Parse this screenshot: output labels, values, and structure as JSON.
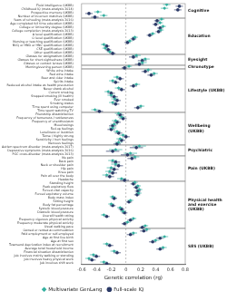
{
  "chart_data": {
    "type": "scatter",
    "orientation": "horizontal",
    "x_label": "Genetic correlation (rg)",
    "xlim": [
      -0.6,
      0.8
    ],
    "xticks": [
      -0.6,
      -0.4,
      -0.2,
      0,
      0.2,
      0.4,
      0.6,
      0.8
    ],
    "reference_x": 0,
    "grid": false,
    "legend": "bottom",
    "groups": [
      {
        "name": "Cognitive",
        "categories": [
          "Fluid intelligence (UKBB)",
          "Childhood IQ (meta-analysis 2014)",
          "Prospective memory (UKBB)",
          "Number of incorrect matches (UKBB)"
        ]
      },
      {
        "name": "Education",
        "categories": [
          "Years of schooling (meta-analysis 2016)",
          "Age completed full time education (UKBB)",
          "College or University degree (UKBB)",
          "College completion (meta-analysis 2013)",
          "A level qualification (UKBB)",
          "O level qualification (UKBB)",
          "Nursing or teaching qualification (UKBB)",
          "NVQ or HND or HNC qualification (UKBB)",
          "CSE qualification (UKBB)",
          "Other qualification (UKBB)"
        ]
      },
      {
        "name": "Eyesight",
        "categories": [
          "Glasses for astigmatism (UKBB)",
          "Glasses for short-sightedness (UKBB)",
          "Glasses or contact lenses (UKBB)"
        ]
      },
      {
        "name": "Chronotype",
        "categories": [
          "Morning/evening person (UKBB)"
        ]
      },
      {
        "name": "Lifestyle (UKBB)",
        "categories": [
          "White wine intake",
          "Red wine intake",
          "Beer and cider intake",
          "Spirits intake",
          "Reduced alcohol intake as health precaution",
          "Never drank alcohol",
          "Current smoking",
          "Stopped smoking (ill health)",
          "Ever smoked",
          "Smoking status",
          "Time spent using computer",
          "Time spent watching TV"
        ]
      },
      {
        "name": "Wellbeing (UKBB)",
        "categories": [
          "Friendship dissatisfaction",
          "Frequency of tenseness / restlessness",
          "Frequency of unenthusiasm",
          "Mood swings",
          "Fed-up feelings",
          "Loneliness or isolation",
          "Tense / highly strung",
          "Sensitivity / hurt feelings",
          "Nervous feelings"
        ]
      },
      {
        "name": "Psychiatric",
        "categories": [
          "Autism spectrum disorder (meta-analysis 2017)",
          "Depressive symptoms (meta-analysis 2016)",
          "PGC cross-disorder (meta-analysis 2013)"
        ]
      },
      {
        "name": "Pain (UKBB)",
        "categories": [
          "No pain",
          "Back pain",
          "Neck or shoulder pain",
          "Hip pain",
          "Knee pain",
          "Pain all over the body",
          "Headache"
        ]
      },
      {
        "name": "Physical health and exercise (UKBB)",
        "categories": [
          "Standing height",
          "Peak expiratory flow",
          "Forced vital capacity",
          "Forced expiratory volume",
          "Body mass index",
          "Sitting height",
          "Body fat percentage",
          "Systolic blood pressure",
          "Diastolic blood pressure",
          "Overall health rating",
          "Frequency vigorous physical activity",
          "Frequency moderate physical activity",
          "Usual walking pace"
        ]
      },
      {
        "name": "SES (UKBB)",
        "categories": [
          "Owned or rented accommodation",
          "Paid employment or self-employed",
          "Age at first live birth",
          "Age at first sex",
          "Townsend deprivation index at recruitment",
          "Average total household income",
          "Financial situation dissatisfaction",
          "Job involves mainly walking or standing",
          "Job involves heavy physical work",
          "Job involves shift work"
        ]
      }
    ],
    "series": [
      {
        "name": "Multivariate GenLang",
        "color": "#35b0a0",
        "marker": "diamond",
        "values": [
          0.55,
          0.52,
          -0.38,
          -0.3,
          0.48,
          0.46,
          0.5,
          0.47,
          0.36,
          0.12,
          0.05,
          -0.3,
          -0.28,
          -0.22,
          0.14,
          0.26,
          0.22,
          0.04,
          0.3,
          0.38,
          -0.12,
          -0.18,
          0.14,
          -0.1,
          -0.24,
          -0.2,
          -0.15,
          -0.18,
          0.2,
          -0.42,
          -0.1,
          -0.06,
          -0.14,
          -0.16,
          -0.18,
          -0.12,
          -0.04,
          -0.08,
          -0.1,
          0.18,
          -0.14,
          0.06,
          0.12,
          -0.18,
          -0.14,
          -0.2,
          -0.22,
          -0.26,
          -0.06,
          0.12,
          0.16,
          0.18,
          0.17,
          -0.18,
          0.06,
          -0.2,
          -0.08,
          -0.04,
          -0.3,
          0.1,
          0.02,
          0.26,
          0.28,
          0.1,
          0.52,
          0.4,
          -0.26,
          0.5,
          -0.16,
          -0.44,
          -0.5,
          -0.3
        ],
        "errors": [
          0.05,
          0.05,
          0.05,
          0.05,
          0.04,
          0.04,
          0.04,
          0.04,
          0.04,
          0.04,
          0.04,
          0.04,
          0.04,
          0.04,
          0.06,
          0.06,
          0.06,
          0.04,
          0.05,
          0.05,
          0.05,
          0.05,
          0.05,
          0.05,
          0.05,
          0.05,
          0.05,
          0.05,
          0.05,
          0.05,
          0.05,
          0.05,
          0.05,
          0.05,
          0.05,
          0.05,
          0.05,
          0.05,
          0.05,
          0.09,
          0.09,
          0.09,
          0.06,
          0.06,
          0.06,
          0.06,
          0.06,
          0.06,
          0.06,
          0.04,
          0.04,
          0.04,
          0.04,
          0.04,
          0.04,
          0.04,
          0.04,
          0.04,
          0.04,
          0.04,
          0.04,
          0.04,
          0.05,
          0.05,
          0.05,
          0.05,
          0.05,
          0.05,
          0.05,
          0.05,
          0.05,
          0.05
        ]
      },
      {
        "name": "Full-scale IQ",
        "color": "#2b3a67",
        "marker": "circle",
        "values": [
          0.72,
          0.7,
          -0.5,
          -0.42,
          0.42,
          0.4,
          0.46,
          0.44,
          0.32,
          0.1,
          0.02,
          -0.26,
          -0.24,
          -0.18,
          0.1,
          0.22,
          0.18,
          -0.02,
          0.26,
          0.34,
          -0.08,
          -0.14,
          0.1,
          -0.06,
          -0.2,
          -0.16,
          -0.12,
          -0.14,
          0.16,
          -0.36,
          -0.08,
          -0.04,
          -0.12,
          -0.18,
          -0.2,
          -0.1,
          0.0,
          -0.06,
          -0.12,
          0.14,
          -0.18,
          0.02,
          0.08,
          -0.14,
          -0.1,
          -0.16,
          -0.18,
          -0.22,
          -0.02,
          0.1,
          0.14,
          0.16,
          0.15,
          -0.16,
          0.04,
          -0.18,
          -0.06,
          -0.02,
          -0.26,
          0.06,
          -0.02,
          0.22,
          0.24,
          0.06,
          0.46,
          0.36,
          -0.22,
          0.46,
          -0.12,
          -0.4,
          -0.46,
          -0.26
        ],
        "errors": [
          0.05,
          0.05,
          0.05,
          0.05,
          0.04,
          0.04,
          0.04,
          0.04,
          0.04,
          0.04,
          0.04,
          0.04,
          0.04,
          0.04,
          0.06,
          0.06,
          0.06,
          0.04,
          0.05,
          0.05,
          0.05,
          0.05,
          0.05,
          0.05,
          0.05,
          0.05,
          0.05,
          0.05,
          0.05,
          0.05,
          0.05,
          0.05,
          0.05,
          0.05,
          0.05,
          0.05,
          0.05,
          0.05,
          0.05,
          0.09,
          0.09,
          0.09,
          0.06,
          0.06,
          0.06,
          0.06,
          0.06,
          0.06,
          0.06,
          0.04,
          0.04,
          0.04,
          0.04,
          0.04,
          0.04,
          0.04,
          0.04,
          0.04,
          0.04,
          0.04,
          0.04,
          0.04,
          0.05,
          0.05,
          0.05,
          0.05,
          0.05,
          0.05,
          0.05,
          0.05,
          0.05,
          0.05
        ]
      }
    ]
  }
}
